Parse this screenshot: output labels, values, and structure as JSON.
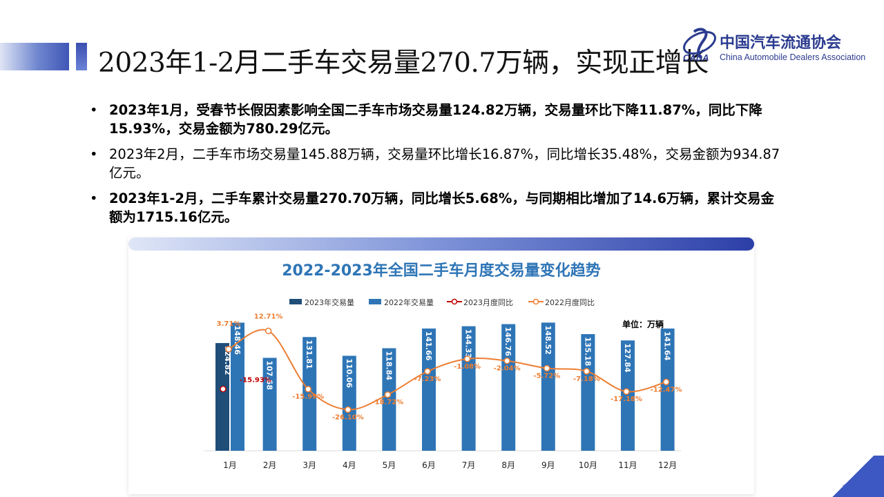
{
  "slide": {
    "title": "2023年1-2月二手车交易量270.7万辆，实现正增长"
  },
  "logo": {
    "cn": "中国汽车流通协会",
    "en": "China Automobile Dealers Association",
    "mark": "CADA"
  },
  "bullets": [
    {
      "text": "2023年1月，受春节长假因素影响全国二手车市场交易量124.82万辆，交易量环比下降11.87%，同比下降15.93%，交易金额为780.29亿元。",
      "bold": true
    },
    {
      "text": "2023年2月，二手车市场交易量145.88万辆，交易量环比增长16.87%，同比增长35.48%，交易金额为934.87亿元。",
      "bold": false
    },
    {
      "text": "2023年1-2月，二手车累计交易量270.70万辆，同比增长5.68%，与同期相比增加了14.6万辆，累计交易金额为1715.16亿元。",
      "bold": true
    }
  ],
  "bullet_glyph": "•",
  "chart_data": {
    "type": "bar",
    "title": "2022-2023年全国二手车月度交易量变化趋势",
    "unit_label": "单位：万辆",
    "categories": [
      "1月",
      "2月",
      "3月",
      "4月",
      "5月",
      "6月",
      "7月",
      "8月",
      "9月",
      "10月",
      "11月",
      "12月"
    ],
    "legend": [
      "2023年交易量",
      "2022年交易量",
      "2023月度同比",
      "2022月度同比"
    ],
    "series": [
      {
        "name": "2023年交易量",
        "kind": "bar",
        "color": "#1f4e79",
        "values": [
          124.82,
          null,
          null,
          null,
          null,
          null,
          null,
          null,
          null,
          null,
          null,
          null
        ],
        "labels": [
          "124.82",
          "",
          "",
          "",
          "",
          "",
          "",
          "",
          "",
          "",
          "",
          ""
        ]
      },
      {
        "name": "2022年交易量",
        "kind": "bar",
        "color": "#2e75b6",
        "values": [
          148.46,
          107.68,
          131.81,
          110.06,
          118.84,
          141.66,
          144.33,
          146.76,
          148.52,
          135.18,
          127.84,
          141.64
        ],
        "labels": [
          "148.46",
          "107.68",
          "131.81",
          "110.06",
          "118.84",
          "141.66",
          "144.33",
          "146.76",
          "148.52",
          "135.18",
          "127.84",
          "141.64"
        ]
      },
      {
        "name": "2023月度同比",
        "kind": "line",
        "color": "#c00000",
        "values": [
          -15.93,
          null,
          null,
          null,
          null,
          null,
          null,
          null,
          null,
          null,
          null,
          null
        ],
        "labels": [
          "-15.93%",
          "",
          "",
          "",
          "",
          "",
          "",
          "",
          "",
          "",
          "",
          ""
        ]
      },
      {
        "name": "2022月度同比",
        "kind": "line",
        "color": "#ed7d31",
        "values": [
          3.71,
          12.71,
          -15.99,
          -26.1,
          -18.72,
          -7.23,
          -1.08,
          -2.04,
          -5.72,
          -7.18,
          -17.18,
          -12.47
        ],
        "labels": [
          "3.71%",
          "12.71%",
          "-15.99%",
          "-26.10%",
          "-18.72%",
          "-7.23%",
          "-1.08%",
          "-2.04%",
          "-5.72%",
          "-7.18%",
          "-17.18%",
          "-12.47%"
        ]
      }
    ],
    "bar_ylim": [
      0,
      200
    ],
    "line_ylim": [
      -60,
      20
    ],
    "grid": false,
    "legend_position": "top"
  }
}
